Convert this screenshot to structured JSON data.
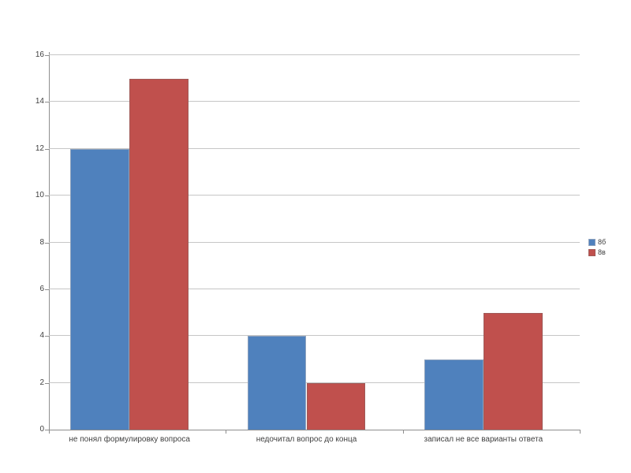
{
  "chart_data": {
    "type": "bar",
    "title": "",
    "xlabel": "",
    "ylabel": "",
    "categories": [
      "не понял формулировку вопроса",
      "недочитал вопрос до конца",
      "записал не все варианты ответа"
    ],
    "series": [
      {
        "name": "8б",
        "color": "#4f81bd",
        "border_color": "#8ea2bd",
        "values": [
          12,
          4,
          3
        ]
      },
      {
        "name": "8в",
        "color": "#c0504d",
        "border_color": "#a05a58",
        "values": [
          15,
          2,
          5
        ]
      }
    ],
    "ylim": [
      0,
      16
    ],
    "ytick_step": 2,
    "yticks": [
      0,
      2,
      4,
      6,
      8,
      10,
      12,
      14,
      16
    ],
    "grid": true,
    "legend_position": "right",
    "gap_width_percent": 100
  },
  "style_colors": {
    "gridline": "#c6c6c6",
    "axis": "#8e8e8e",
    "text": "#3f3f3f",
    "background": "#ffffff"
  }
}
